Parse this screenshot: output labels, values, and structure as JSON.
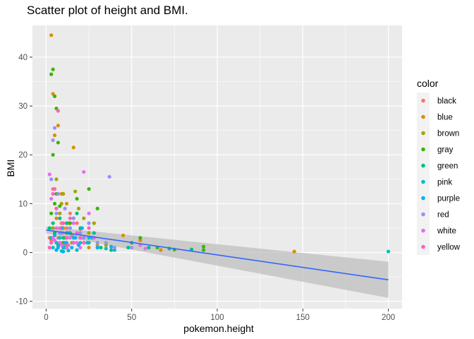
{
  "chart_data": {
    "type": "scatter",
    "title": "Scatter plot of height and BMI.",
    "xlabel": "pokemon.height",
    "ylabel": "BMI",
    "xlim": [
      -8,
      208
    ],
    "ylim": [
      -11.5,
      46.5
    ],
    "x_ticks": [
      0,
      50,
      100,
      150,
      200
    ],
    "y_ticks": [
      -10,
      0,
      10,
      20,
      30,
      40
    ],
    "grid": true,
    "legend": {
      "title": "color",
      "placement": "right"
    },
    "series": [
      {
        "name": "black",
        "color": "#F8766D",
        "points": [
          [
            3,
            2.5
          ],
          [
            5,
            4
          ],
          [
            7,
            3
          ],
          [
            9,
            6
          ],
          [
            10,
            2
          ],
          [
            12,
            5
          ],
          [
            15,
            3.5
          ],
          [
            20,
            4.8
          ],
          [
            4,
            13
          ],
          [
            6,
            9
          ],
          [
            8,
            2
          ],
          [
            11,
            1.5
          ],
          [
            14,
            8
          ],
          [
            18,
            6
          ],
          [
            25,
            3
          ],
          [
            2,
            3
          ]
        ]
      },
      {
        "name": "blue",
        "color": "#D89000",
        "points": [
          [
            3,
            44.5
          ],
          [
            4,
            32.5
          ],
          [
            5,
            24
          ],
          [
            7,
            26
          ],
          [
            8,
            4
          ],
          [
            9,
            12
          ],
          [
            10,
            5
          ],
          [
            12,
            10
          ],
          [
            13,
            6
          ],
          [
            16,
            21.5
          ],
          [
            20,
            3
          ],
          [
            22,
            2
          ],
          [
            25,
            1
          ],
          [
            30,
            1.5
          ],
          [
            45,
            3.5
          ],
          [
            55,
            2.5
          ],
          [
            67,
            0.5
          ],
          [
            145,
            0.2
          ],
          [
            6,
            7
          ],
          [
            11,
            3
          ]
        ]
      },
      {
        "name": "brown",
        "color": "#A3A500",
        "points": [
          [
            4,
            5
          ],
          [
            6,
            15
          ],
          [
            8,
            8
          ],
          [
            10,
            12
          ],
          [
            12,
            3
          ],
          [
            14,
            6
          ],
          [
            17,
            12.5
          ],
          [
            19,
            9
          ],
          [
            22,
            7
          ],
          [
            25,
            4
          ],
          [
            28,
            6
          ],
          [
            15,
            2
          ],
          [
            35,
            1.5
          ],
          [
            40,
            1
          ],
          [
            9,
            10
          ],
          [
            5,
            3.5
          ]
        ]
      },
      {
        "name": "gray",
        "color": "#39B600",
        "points": [
          [
            3,
            36.5
          ],
          [
            4,
            37.5
          ],
          [
            5,
            32
          ],
          [
            6,
            29.5
          ],
          [
            7,
            22.5
          ],
          [
            4,
            20
          ],
          [
            5,
            10
          ],
          [
            6,
            12
          ],
          [
            8,
            9.5
          ],
          [
            9,
            4
          ],
          [
            10,
            2
          ],
          [
            12,
            4
          ],
          [
            14,
            6
          ],
          [
            16,
            7
          ],
          [
            18,
            11
          ],
          [
            20,
            5
          ],
          [
            25,
            13
          ],
          [
            30,
            9
          ],
          [
            50,
            2
          ],
          [
            55,
            3
          ],
          [
            65,
            1
          ],
          [
            92,
            1.2
          ],
          [
            92,
            0.5
          ],
          [
            75,
            0.6
          ],
          [
            2,
            5
          ],
          [
            3,
            8
          ]
        ]
      },
      {
        "name": "green",
        "color": "#00BF7D",
        "points": [
          [
            2,
            5
          ],
          [
            3,
            3
          ],
          [
            4,
            6
          ],
          [
            5,
            4
          ],
          [
            6,
            2
          ],
          [
            8,
            7
          ],
          [
            9,
            5
          ],
          [
            10,
            3
          ],
          [
            12,
            6
          ],
          [
            14,
            4
          ],
          [
            16,
            2
          ],
          [
            18,
            8
          ],
          [
            20,
            5
          ],
          [
            22,
            3
          ],
          [
            25,
            2
          ],
          [
            28,
            4
          ],
          [
            32,
            1
          ],
          [
            38,
            0.5
          ],
          [
            48,
            1
          ],
          [
            60,
            1
          ],
          [
            72,
            0.8
          ],
          [
            85,
            0.6
          ],
          [
            7,
            1.5
          ],
          [
            11,
            1
          ]
        ]
      },
      {
        "name": "pink",
        "color": "#00BFC4",
        "points": [
          [
            4,
            1
          ],
          [
            6,
            2
          ],
          [
            8,
            3
          ],
          [
            10,
            1
          ],
          [
            12,
            2
          ],
          [
            14,
            5
          ],
          [
            16,
            3
          ],
          [
            18,
            0.5
          ],
          [
            20,
            2
          ],
          [
            25,
            3
          ],
          [
            30,
            1
          ],
          [
            35,
            0.8
          ],
          [
            200,
            0.2
          ],
          [
            9,
            0.3
          ],
          [
            13,
            0.4
          ]
        ]
      },
      {
        "name": "purple",
        "color": "#00B0F6",
        "points": [
          [
            3,
            2
          ],
          [
            5,
            3.5
          ],
          [
            7,
            1
          ],
          [
            9,
            5
          ],
          [
            11,
            2
          ],
          [
            13,
            4
          ],
          [
            15,
            1
          ],
          [
            17,
            3
          ],
          [
            19,
            1.5
          ],
          [
            21,
            5
          ],
          [
            24,
            2
          ],
          [
            27,
            3
          ],
          [
            30,
            1
          ],
          [
            38,
            1.2
          ],
          [
            40,
            0.5
          ],
          [
            6,
            0.5
          ],
          [
            10,
            0.2
          ]
        ]
      },
      {
        "name": "red",
        "color": "#9590FF",
        "points": [
          [
            3,
            15
          ],
          [
            4,
            23
          ],
          [
            5,
            25.5
          ],
          [
            6,
            8
          ],
          [
            8,
            4
          ],
          [
            10,
            6
          ],
          [
            12,
            3
          ],
          [
            14,
            5
          ],
          [
            16,
            7
          ],
          [
            18,
            2
          ],
          [
            20,
            4
          ],
          [
            22,
            3
          ],
          [
            25,
            6
          ],
          [
            30,
            2
          ],
          [
            37,
            15.5
          ],
          [
            35,
            2
          ],
          [
            40,
            1
          ],
          [
            50,
            1
          ],
          [
            7,
            12
          ],
          [
            11,
            9
          ]
        ]
      },
      {
        "name": "white",
        "color": "#E76BF3",
        "points": [
          [
            2,
            16
          ],
          [
            3,
            11
          ],
          [
            4,
            3
          ],
          [
            6,
            5
          ],
          [
            8,
            2
          ],
          [
            10,
            4
          ],
          [
            12,
            1
          ],
          [
            14,
            3
          ],
          [
            16,
            6
          ],
          [
            18,
            2
          ],
          [
            20,
            1
          ],
          [
            22,
            16.5
          ],
          [
            25,
            8
          ],
          [
            28,
            3
          ],
          [
            55,
            1.5
          ],
          [
            58,
            0.8
          ],
          [
            5,
            2.5
          ],
          [
            9,
            1.5
          ]
        ]
      },
      {
        "name": "yellow",
        "color": "#FF62BC",
        "points": [
          [
            3,
            2
          ],
          [
            4,
            12
          ],
          [
            5,
            13
          ],
          [
            6,
            9
          ],
          [
            7,
            29
          ],
          [
            8,
            5
          ],
          [
            10,
            6
          ],
          [
            12,
            3
          ],
          [
            14,
            7
          ],
          [
            16,
            2
          ],
          [
            18,
            4
          ],
          [
            20,
            3
          ],
          [
            22,
            2
          ],
          [
            25,
            5
          ],
          [
            2,
            1
          ],
          [
            13,
            1.5
          ]
        ]
      }
    ],
    "trend": {
      "x": [
        0,
        200
      ],
      "y": [
        4.6,
        -5.6
      ],
      "band_lower": [
        3.9,
        -9.3
      ],
      "band_upper": [
        5.3,
        -1.9
      ],
      "color": "#3366FF",
      "band_color": "#bfbfbf"
    }
  }
}
